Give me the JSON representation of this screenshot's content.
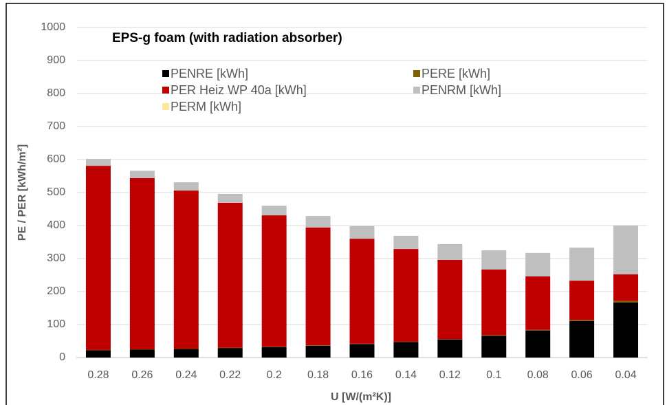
{
  "chart_data": {
    "type": "stacked_bar",
    "title": "EPS-g foam (with radiation absorber)",
    "xlabel": "U [W/(m²K)]",
    "ylabel": "PE / PER [kWh/m²]",
    "categories": [
      "0.28",
      "0.26",
      "0.24",
      "0.22",
      "0.2",
      "0.18",
      "0.16",
      "0.14",
      "0.12",
      "0.1",
      "0.08",
      "0.06",
      "0.04"
    ],
    "series": [
      {
        "name": "PENRE [kWh]",
        "color": "#000000",
        "values": [
          22,
          24,
          26,
          29,
          32,
          36,
          41,
          47,
          55,
          66,
          82,
          111,
          167
        ]
      },
      {
        "name": "PERE [kWh]",
        "color": "#7f6000",
        "values": [
          1,
          1,
          1,
          1,
          1,
          1,
          1,
          1,
          1,
          2,
          2,
          3,
          5
        ]
      },
      {
        "name": "PER Heiz WP 40a [kWh]",
        "color": "#c00000",
        "values": [
          558,
          519,
          479,
          439,
          398,
          357,
          318,
          281,
          240,
          199,
          162,
          119,
          80
        ]
      },
      {
        "name": "PENRM [kWh]",
        "color": "#bfbfbf",
        "values": [
          21,
          22,
          25,
          27,
          29,
          35,
          38,
          40,
          48,
          58,
          71,
          100,
          148
        ]
      },
      {
        "name": "PERM [kWh]",
        "color": "#ffe699",
        "values": [
          0,
          0,
          0,
          0,
          0,
          0,
          0,
          0,
          0,
          0,
          0,
          0,
          0
        ]
      }
    ],
    "ylim": [
      0,
      1000
    ],
    "yticks": [
      0,
      100,
      200,
      300,
      400,
      500,
      600,
      700,
      800,
      900,
      1000
    ],
    "grid": true
  }
}
